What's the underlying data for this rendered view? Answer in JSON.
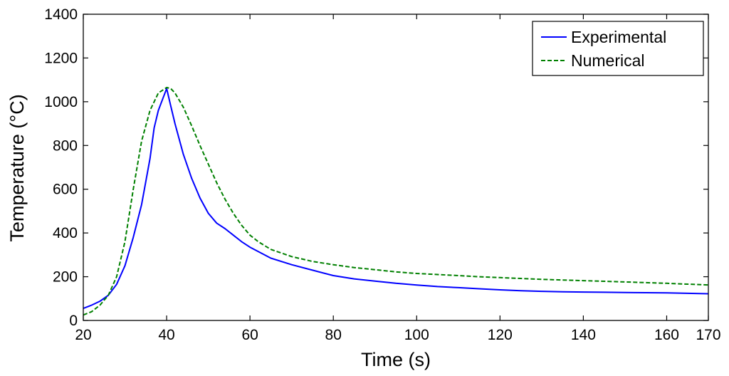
{
  "chart_data": {
    "type": "line",
    "title": "",
    "xlabel": "Time (s)",
    "ylabel": "Temperature (°C)",
    "xlim": [
      20,
      170
    ],
    "ylim": [
      0,
      1400
    ],
    "xticks": [
      20,
      40,
      60,
      80,
      100,
      120,
      140,
      160,
      170
    ],
    "xtick_labels": [
      "20",
      "40",
      "60",
      "80",
      "100",
      "120",
      "140",
      "160",
      "170"
    ],
    "yticks": [
      0,
      200,
      400,
      600,
      800,
      1000,
      1200,
      1400
    ],
    "ytick_labels": [
      "0",
      "200",
      "400",
      "600",
      "800",
      "1000",
      "1200",
      "1400"
    ],
    "grid": false,
    "legend_position": "top-right",
    "series": [
      {
        "name": "Experimental",
        "color": "#0000ff",
        "style": "solid",
        "x": [
          20,
          22,
          24,
          26,
          28,
          30,
          32,
          34,
          36,
          37,
          38,
          39,
          40,
          41,
          42,
          44,
          46,
          48,
          50,
          52,
          54,
          56,
          58,
          60,
          65,
          70,
          75,
          80,
          85,
          90,
          95,
          100,
          105,
          110,
          115,
          120,
          125,
          130,
          135,
          140,
          145,
          150,
          155,
          160,
          165,
          170
        ],
        "y": [
          55,
          70,
          88,
          115,
          165,
          250,
          380,
          530,
          740,
          880,
          960,
          1010,
          1060,
          980,
          900,
          760,
          650,
          560,
          490,
          445,
          420,
          390,
          360,
          335,
          285,
          255,
          230,
          205,
          190,
          180,
          170,
          162,
          155,
          150,
          145,
          140,
          136,
          133,
          131,
          130,
          129,
          128,
          127,
          126,
          124,
          122
        ]
      },
      {
        "name": "Numerical",
        "color": "#008000",
        "style": "dashed",
        "x": [
          20,
          22,
          24,
          26,
          28,
          30,
          32,
          34,
          36,
          38,
          40,
          41,
          42,
          44,
          46,
          48,
          50,
          52,
          54,
          56,
          58,
          60,
          62,
          65,
          70,
          75,
          80,
          85,
          90,
          95,
          100,
          105,
          110,
          115,
          120,
          125,
          130,
          135,
          140,
          145,
          150,
          155,
          160,
          165,
          170
        ],
        "y": [
          25,
          40,
          70,
          115,
          200,
          360,
          600,
          820,
          960,
          1040,
          1065,
          1060,
          1040,
          975,
          890,
          800,
          715,
          630,
          555,
          490,
          435,
          390,
          360,
          325,
          292,
          270,
          255,
          242,
          232,
          222,
          215,
          210,
          205,
          200,
          196,
          192,
          188,
          185,
          182,
          179,
          176,
          173,
          170,
          166,
          162
        ]
      }
    ]
  }
}
